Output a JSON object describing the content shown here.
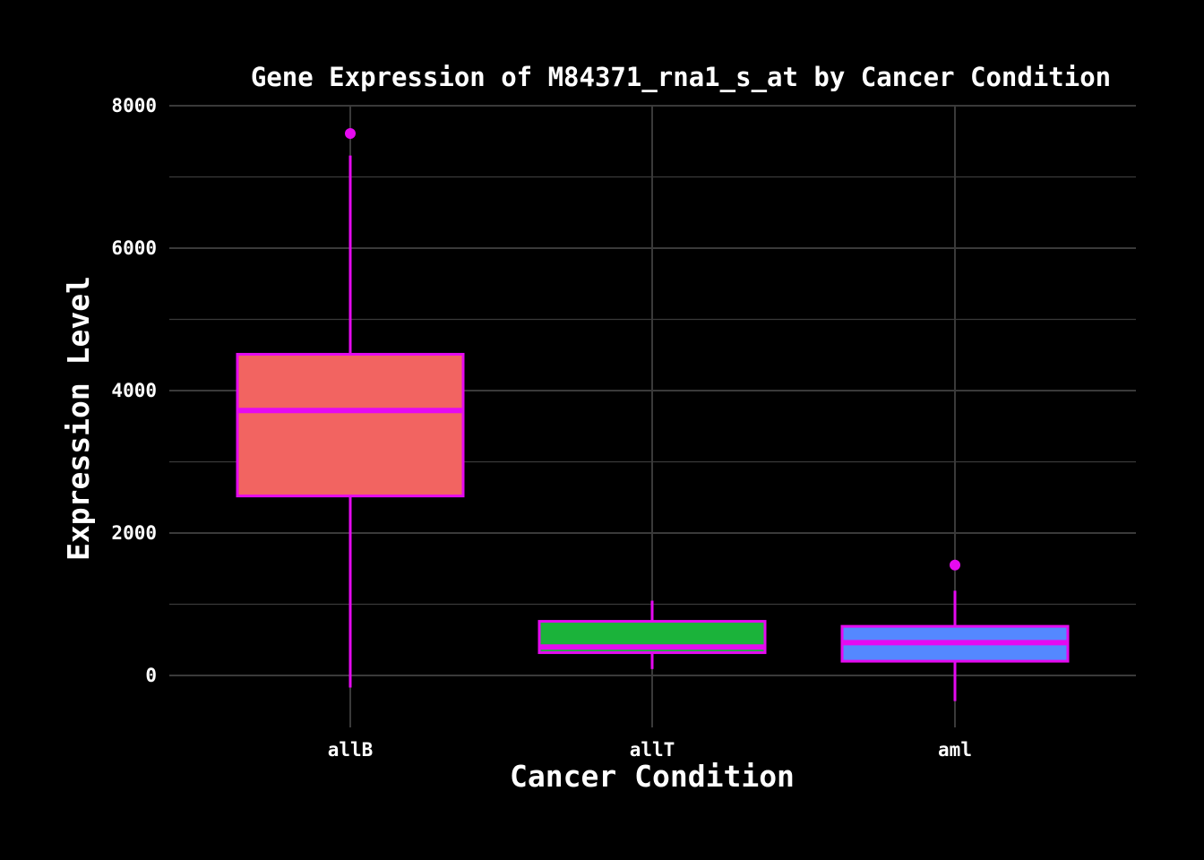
{
  "chart_data": {
    "type": "boxplot",
    "title": "Gene Expression of M84371_rna1_s_at by Cancer Condition",
    "xlabel": "Cancer Condition",
    "ylabel": "Expression Level",
    "ylim": [
      -700,
      8000
    ],
    "y_ticks": [
      0,
      2000,
      4000,
      6000,
      8000
    ],
    "y_tick_labels": [
      "0",
      "2000",
      "4000",
      "6000",
      "8000"
    ],
    "grid": true,
    "legend": "none",
    "categories": [
      "allB",
      "allT",
      "aml"
    ],
    "boxes": [
      {
        "category": "allB",
        "fill": "#F26461",
        "min": -170,
        "q1": 2520,
        "median": 3720,
        "q3": 4510,
        "max": 7300,
        "outliers": [
          7610
        ]
      },
      {
        "category": "allT",
        "fill": "#1BB33A",
        "min": 90,
        "q1": 320,
        "median": 400,
        "q3": 760,
        "max": 1050,
        "outliers": []
      },
      {
        "category": "aml",
        "fill": "#5488FF",
        "min": -360,
        "q1": 200,
        "median": 460,
        "q3": 690,
        "max": 1190,
        "outliers": [
          1550
        ]
      }
    ],
    "box_outline_color": "#E50AF0",
    "background_color": "#000000",
    "grid_color": "#3a3a3a",
    "text_color": "#ffffff"
  }
}
